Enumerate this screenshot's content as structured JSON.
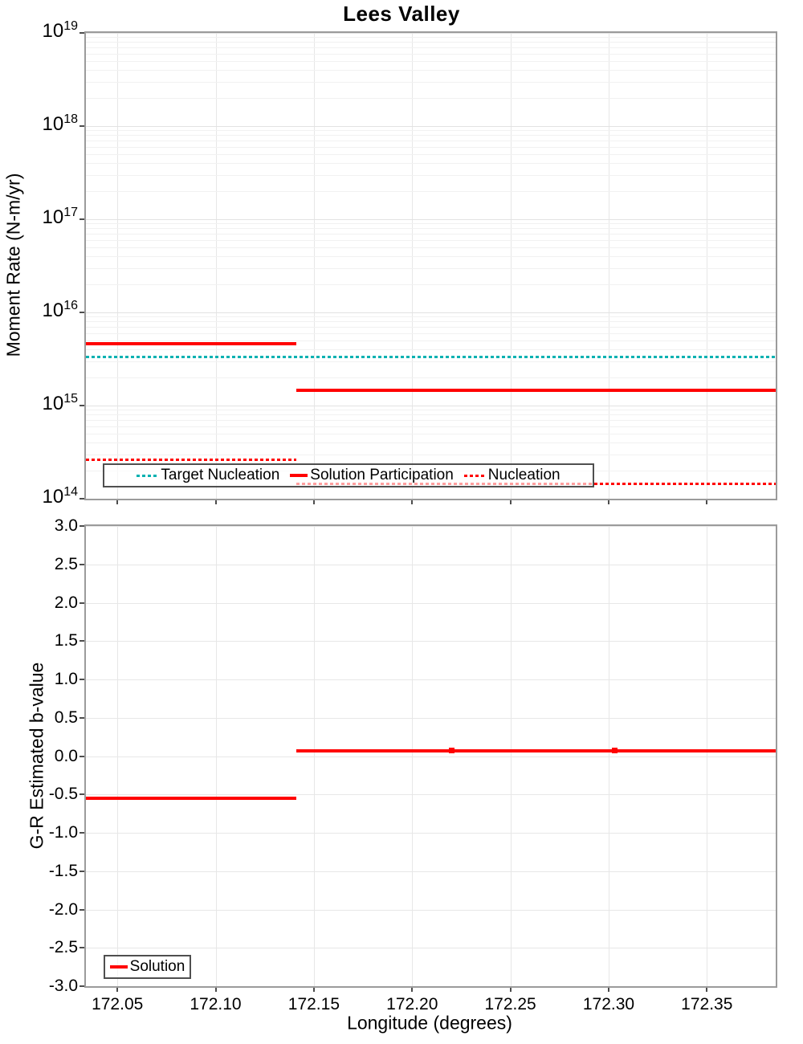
{
  "figure_title": "Lees Valley",
  "colors": {
    "solution_red": "#ff0000",
    "target_teal": "#00b1b1",
    "grid": "#e7e7e7",
    "plot_border": "#9b9b9b",
    "legend_border": "#4f4f4f"
  },
  "chart_data": [
    {
      "type": "line",
      "title": "Lees Valley",
      "ylabel": "Moment Rate (N-m/yr)",
      "yscale": "log",
      "ylim": [
        14,
        19
      ],
      "ytick_exponents": [
        14,
        15,
        16,
        17,
        18,
        19
      ],
      "minor_gridlines": true,
      "xlim": [
        172.034,
        172.385
      ],
      "xticks": [
        172.05,
        172.1,
        172.15,
        172.2,
        172.25,
        172.3,
        172.35
      ],
      "legend_position": "inside-bottom-left",
      "series": [
        {
          "name": "Target Nucleation",
          "color": "#00b1b1",
          "line_style": "dotted",
          "line_width": 3,
          "segments": [
            {
              "x_start": 172.034,
              "x_end": 172.385,
              "y": 3300000000000000.0
            }
          ]
        },
        {
          "name": "Solution Participation",
          "color": "#ff0000",
          "line_style": "solid",
          "line_width": 4,
          "segments": [
            {
              "x_start": 172.034,
              "x_end": 172.141,
              "y": 4600000000000000.0
            },
            {
              "x_start": 172.141,
              "x_end": 172.385,
              "y": 1470000000000000.0
            }
          ]
        },
        {
          "name": "Nucleation",
          "color": "#ff0000",
          "line_style": "dotted",
          "line_width": 3,
          "segments": [
            {
              "x_start": 172.034,
              "x_end": 172.141,
              "y": 260000000000000.0
            },
            {
              "x_start": 172.141,
              "x_end": 172.385,
              "y": 145000000000000.0
            }
          ]
        }
      ]
    },
    {
      "type": "line",
      "ylabel": "G-R Estimated b-value",
      "xlabel": "Longitude (degrees)",
      "yscale": "linear",
      "ylim": [
        -3.0,
        3.0
      ],
      "ytick_step": 0.5,
      "minor_gridlines": false,
      "xlim": [
        172.034,
        172.385
      ],
      "xticks": [
        172.05,
        172.1,
        172.15,
        172.2,
        172.25,
        172.3,
        172.35
      ],
      "legend_position": "inside-bottom-left",
      "series": [
        {
          "name": "Solution",
          "color": "#ff0000",
          "line_style": "solid",
          "line_width": 4,
          "segments": [
            {
              "x_start": 172.034,
              "x_end": 172.141,
              "y": -0.55
            },
            {
              "x_start": 172.141,
              "x_end": 172.385,
              "y": 0.07
            }
          ],
          "point_markers_x": [
            172.22,
            172.303
          ]
        }
      ]
    }
  ]
}
